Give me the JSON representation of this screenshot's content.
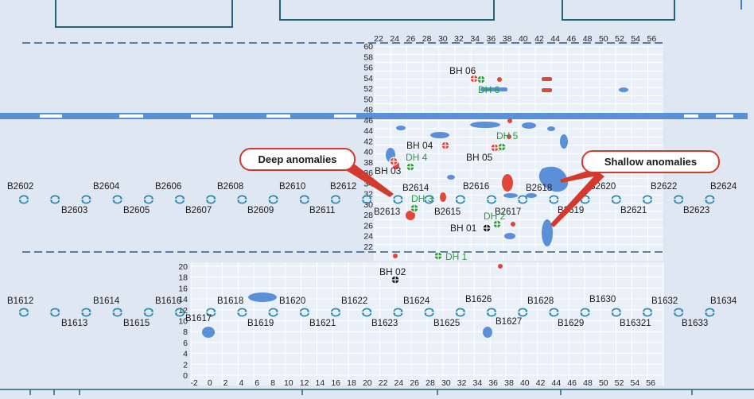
{
  "top_axis": {
    "x_ticks": [
      "22",
      "24",
      "26",
      "28",
      "30",
      "32",
      "34",
      "36",
      "38",
      "40",
      "42",
      "44",
      "46",
      "48",
      "50",
      "52",
      "54",
      "56"
    ],
    "y_ticks": [
      "60",
      "58",
      "56",
      "54",
      "52",
      "50",
      "48",
      "46",
      "44",
      "42",
      "40",
      "38",
      "36",
      "34",
      "32",
      "30",
      "28",
      "26",
      "24",
      "22"
    ]
  },
  "bottom_axis": {
    "x_ticks": [
      "-2",
      "0",
      "2",
      "4",
      "6",
      "8",
      "10",
      "12",
      "14",
      "16",
      "18",
      "20",
      "22",
      "24",
      "26",
      "28",
      "30",
      "32",
      "34",
      "36",
      "38",
      "40",
      "42",
      "44",
      "46",
      "48",
      "50",
      "52",
      "54",
      "56"
    ],
    "y_ticks": [
      "20",
      "18",
      "16",
      "14",
      "12",
      "10",
      "8",
      "6",
      "4",
      "2",
      "0"
    ]
  },
  "row_b26": {
    "upper_labels": [
      "B2602",
      "B2604",
      "B2606",
      "B2608",
      "B2610",
      "B2612",
      "B2614",
      "B2616",
      "B2618",
      "B2620",
      "B2622",
      "B2624"
    ],
    "lower_labels": [
      "B2603",
      "B2605",
      "B2607",
      "B2609",
      "B2611",
      "B2613",
      "B2615",
      "B2617",
      "B2619",
      "B2621",
      "B2623"
    ]
  },
  "row_b16": {
    "upper_labels": [
      "B1612",
      "B1614",
      "B1616",
      "B1618",
      "B1620",
      "B1622",
      "B1624",
      "B1626",
      "B1628",
      "B1630",
      "B1632",
      "B1634"
    ],
    "lower_labels": [
      "B1613",
      "B1615",
      "B1617",
      "B1619",
      "B1621",
      "B1623",
      "B1625",
      "B1627",
      "B1629",
      "B16321",
      "B1633"
    ]
  },
  "boreholes": {
    "bh06": "BH 06",
    "bh04": "BH 04",
    "bh05": "BH 05",
    "bh03": "BH 03",
    "bh01": "BH 01",
    "bh02": "BH 02",
    "dh6": "DH 6",
    "dh5": "DH 5",
    "dh4": "DH 4",
    "dh3": "DH 3",
    "dh2": "DH 2",
    "dh1": "DH 1"
  },
  "callouts": {
    "deep": "Deep anomalies",
    "shallow": "Shallow anomalies"
  },
  "colors": {
    "background": "#dfe7f2",
    "grid": "#ffffff",
    "shallow_anomaly": "#5b8fd8",
    "deep_anomaly": "#e0463a",
    "borehole_label": "#1a1a1a",
    "drillhole_label": "#2e9a3c",
    "row_marker": "#2a8ab5",
    "frame": "#26627a",
    "callout_border": "#d23a2e"
  }
}
